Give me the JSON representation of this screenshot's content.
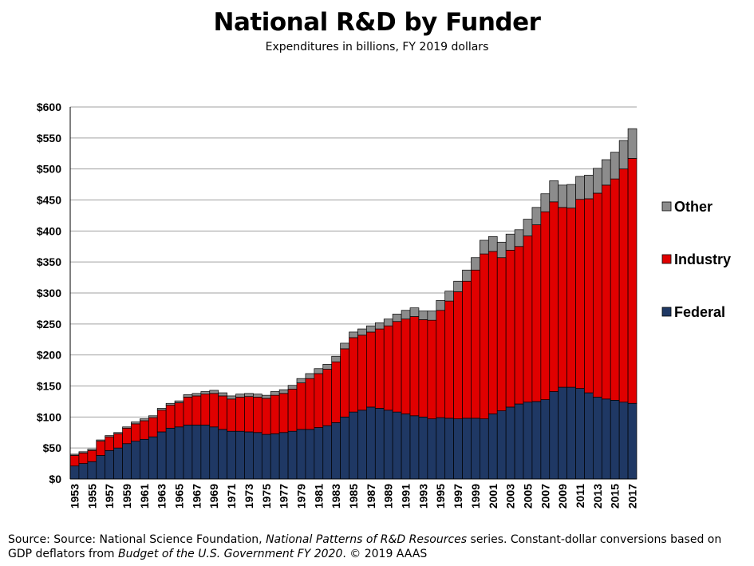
{
  "header": {
    "title": "National R&D by Funder",
    "subtitle": "Expenditures in billions, FY 2019 dollars"
  },
  "footer": {
    "source_prefix": "Source: Source: National Science Foundation, ",
    "source_italic1": "National Patterns of R&D Resources",
    "source_mid": " series. Constant-dollar conversions based on GDP deflators from ",
    "source_italic2": "Budget of the U.S. Government FY 2020",
    "source_suffix": ". © 2019 AAAS"
  },
  "colors": {
    "federal": "#1f3864",
    "industry": "#e00000",
    "other": "#8c8c8c",
    "grid": "#a0a0a0"
  },
  "chart_data": {
    "type": "bar",
    "stacked": true,
    "title": "National R&D by Funder",
    "subtitle": "Expenditures in billions, FY 2019 dollars",
    "xlabel": "",
    "ylabel": "",
    "ylim": [
      0,
      600
    ],
    "yticks": [
      "$0",
      "$50",
      "$100",
      "$150",
      "$200",
      "$250",
      "$300",
      "$350",
      "$400",
      "$450",
      "$500",
      "$550",
      "$600"
    ],
    "grid": true,
    "legend_position": "right",
    "legend": [
      "Other",
      "Industry",
      "Federal"
    ],
    "categories": [
      "1953",
      "1954",
      "1955",
      "1956",
      "1957",
      "1958",
      "1959",
      "1960",
      "1961",
      "1962",
      "1963",
      "1964",
      "1965",
      "1966",
      "1967",
      "1968",
      "1969",
      "1970",
      "1971",
      "1972",
      "1973",
      "1974",
      "1975",
      "1976",
      "1977",
      "1978",
      "1979",
      "1980",
      "1981",
      "1982",
      "1983",
      "1984",
      "1985",
      "1986",
      "1987",
      "1988",
      "1989",
      "1990",
      "1991",
      "1992",
      "1993",
      "1994",
      "1995",
      "1996",
      "1997",
      "1998",
      "1999",
      "2000",
      "2001",
      "2002",
      "2003",
      "2004",
      "2005",
      "2006",
      "2007",
      "2008",
      "2009",
      "2010",
      "2011",
      "2012",
      "2013",
      "2014",
      "2015",
      "2016",
      "2017"
    ],
    "xtick_labels": [
      "1953",
      "1955",
      "1957",
      "1959",
      "1961",
      "1963",
      "1965",
      "1967",
      "1969",
      "1971",
      "1973",
      "1975",
      "1977",
      "1979",
      "1981",
      "1983",
      "1985",
      "1987",
      "1989",
      "1991",
      "1993",
      "1995",
      "1997",
      "1999",
      "2001",
      "2003",
      "2005",
      "2007",
      "2009",
      "2011",
      "2013",
      "2015",
      "2017"
    ],
    "series": [
      {
        "name": "Federal",
        "values": [
          21,
          25,
          28,
          38,
          46,
          50,
          57,
          61,
          64,
          68,
          76,
          82,
          84,
          87,
          87,
          87,
          84,
          80,
          77,
          77,
          76,
          75,
          72,
          73,
          75,
          77,
          80,
          80,
          83,
          86,
          91,
          100,
          108,
          111,
          116,
          114,
          111,
          108,
          105,
          102,
          100,
          97,
          99,
          98,
          97,
          98,
          98,
          97,
          105,
          110,
          116,
          121,
          124,
          125,
          128,
          141,
          148,
          148,
          146,
          139,
          132,
          129,
          127,
          124,
          122
        ]
      },
      {
        "name": "Industry",
        "values": [
          17,
          17,
          18,
          23,
          22,
          23,
          25,
          28,
          30,
          31,
          35,
          37,
          39,
          45,
          47,
          50,
          54,
          54,
          52,
          55,
          57,
          57,
          58,
          62,
          63,
          68,
          75,
          82,
          87,
          91,
          98,
          110,
          120,
          121,
          121,
          128,
          136,
          146,
          153,
          160,
          157,
          159,
          173,
          189,
          205,
          221,
          239,
          266,
          262,
          247,
          253,
          254,
          268,
          285,
          303,
          306,
          290,
          289,
          305,
          313,
          329,
          345,
          357,
          376,
          395
        ]
      },
      {
        "name": "Other",
        "values": [
          2,
          2,
          2,
          2,
          2,
          2,
          2,
          3,
          3,
          3,
          3,
          3,
          3,
          4,
          4,
          4,
          5,
          5,
          5,
          5,
          5,
          5,
          5,
          6,
          6,
          6,
          7,
          8,
          8,
          8,
          9,
          9,
          9,
          10,
          10,
          10,
          11,
          12,
          14,
          14,
          14,
          15,
          16,
          16,
          17,
          18,
          20,
          22,
          24,
          25,
          26,
          27,
          27,
          28,
          29,
          34,
          36,
          38,
          37,
          38,
          40,
          41,
          43,
          46,
          48
        ]
      }
    ]
  }
}
